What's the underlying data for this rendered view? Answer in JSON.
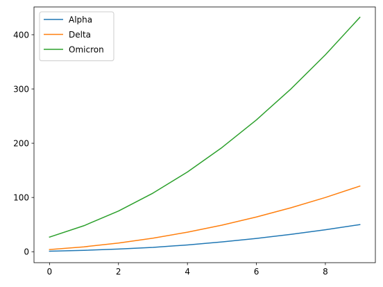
{
  "chart_data": {
    "type": "line",
    "title": "",
    "xlabel": "",
    "ylabel": "",
    "x": [
      0,
      1,
      2,
      3,
      4,
      5,
      6,
      7,
      8,
      9
    ],
    "xlim": [
      -0.45,
      9.45
    ],
    "ylim": [
      -20.2,
      451.2
    ],
    "xticks": [
      0,
      2,
      4,
      6,
      8
    ],
    "yticks": [
      0,
      100,
      200,
      300,
      400
    ],
    "grid": false,
    "legend_position": "top-left",
    "series": [
      {
        "name": "Alpha",
        "color": "#1f77b4",
        "values": [
          1,
          2.5,
          5,
          8,
          12.5,
          18,
          24.5,
          32,
          40.5,
          50
        ]
      },
      {
        "name": "Delta",
        "color": "#ff7f0e",
        "values": [
          4,
          9,
          16,
          25,
          36,
          49,
          64,
          81,
          100,
          121
        ]
      },
      {
        "name": "Omicron",
        "color": "#2ca02c",
        "values": [
          27,
          48,
          75,
          108,
          147,
          192,
          243,
          300,
          363,
          432
        ]
      }
    ]
  }
}
